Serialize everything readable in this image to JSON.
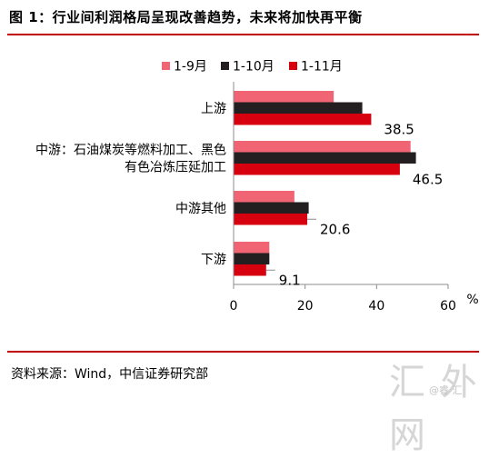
{
  "figure": {
    "title": "图 1：行业间利润格局呈现改善趋势，未来将加快再平衡",
    "source": "资料来源：Wind，中信证券研究部",
    "watermark": "汇 外 网",
    "watermark_sub": "@睿 汇"
  },
  "chart_data": {
    "type": "bar",
    "orientation": "horizontal",
    "categories": [
      "上游",
      "中游：石油煤炭等燃料加工、黑色\n有色冶炼压延加工",
      "中游其他",
      "下游"
    ],
    "series": [
      {
        "name": "1-9月",
        "color": "#f06474",
        "values": [
          28,
          49.5,
          17,
          10
        ]
      },
      {
        "name": "1-10月",
        "color": "#231f20",
        "values": [
          36,
          51,
          21,
          10
        ]
      },
      {
        "name": "1-11月",
        "color": "#d7000f",
        "values": [
          38.5,
          46.5,
          20.6,
          9.1
        ]
      }
    ],
    "data_labels": [
      "38.5",
      "46.5",
      "20.6",
      "9.1"
    ],
    "x_ticks": [
      "0",
      "20",
      "40",
      "60"
    ],
    "xlim": [
      0,
      60
    ],
    "unit": "%",
    "legend_position": "top"
  }
}
